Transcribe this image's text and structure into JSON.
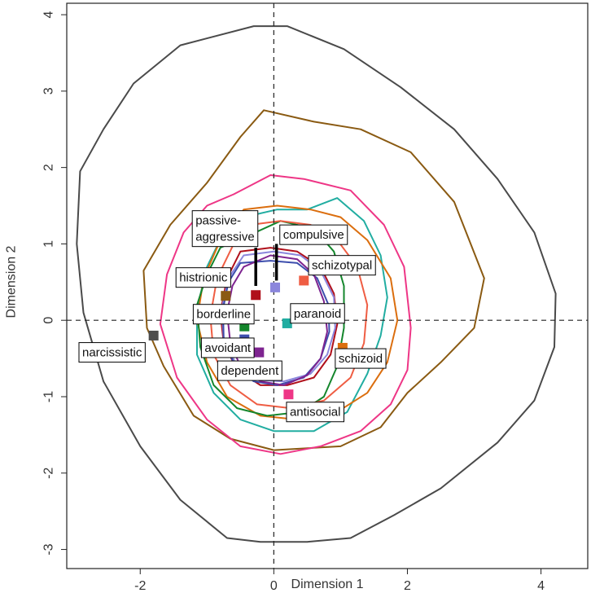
{
  "chart_data": {
    "type": "scatter",
    "xlabel": "Dimension 1",
    "ylabel": "Dimension 2",
    "xlim": [
      -3.1,
      4.7
    ],
    "ylim": [
      -3.25,
      4.15
    ],
    "x_ticks": [
      -2,
      0,
      2,
      4
    ],
    "y_ticks": [
      -3,
      -2,
      -1,
      0,
      1,
      2,
      3,
      4
    ],
    "reference_lines": {
      "x": 0,
      "y": 0,
      "style": "dashed"
    },
    "grid": false,
    "legend": "none",
    "points": [
      {
        "label": "narcissistic",
        "x": -1.8,
        "y": -0.2,
        "color": "#4d4d4d"
      },
      {
        "label": "histrionic",
        "x": -0.72,
        "y": 0.32,
        "color": "#8a5a12"
      },
      {
        "label": "passive-aggressive",
        "x": -0.27,
        "y": 0.33,
        "color": "#b0101b"
      },
      {
        "label": "compulsive",
        "x": 0.02,
        "y": 0.43,
        "color": "#8b86dc"
      },
      {
        "label": "schizotypal",
        "x": 0.45,
        "y": 0.52,
        "color": "#ef5d43"
      },
      {
        "label": "borderline",
        "x": -0.44,
        "y": -0.08,
        "color": "#14862c"
      },
      {
        "label": "avoidant",
        "x": -0.44,
        "y": -0.25,
        "color": "#3d4ead"
      },
      {
        "label": "paranoid",
        "x": 0.2,
        "y": -0.04,
        "color": "#21ada1"
      },
      {
        "label": "dependent",
        "x": -0.22,
        "y": -0.42,
        "color": "#7e2490"
      },
      {
        "label": "schizoid",
        "x": 1.03,
        "y": -0.36,
        "color": "#db6e0e"
      },
      {
        "label": "antisocial",
        "x": 0.22,
        "y": -0.97,
        "color": "#ee3686"
      }
    ],
    "contours": [
      {
        "color": "#4a4a4a",
        "points": [
          [
            -0.3,
            3.85
          ],
          [
            0.2,
            3.85
          ],
          [
            1.05,
            3.55
          ],
          [
            1.9,
            3.05
          ],
          [
            2.7,
            2.5
          ],
          [
            3.35,
            1.85
          ],
          [
            3.9,
            1.15
          ],
          [
            4.22,
            0.35
          ],
          [
            4.2,
            -0.35
          ],
          [
            3.9,
            -1.05
          ],
          [
            3.35,
            -1.6
          ],
          [
            2.5,
            -2.2
          ],
          [
            1.8,
            -2.55
          ],
          [
            1.15,
            -2.85
          ],
          [
            0.5,
            -2.9
          ],
          [
            -0.2,
            -2.9
          ],
          [
            -0.7,
            -2.85
          ],
          [
            -1.4,
            -2.35
          ],
          [
            -2.0,
            -1.65
          ],
          [
            -2.55,
            -0.8
          ],
          [
            -2.85,
            0.1
          ],
          [
            -2.95,
            1.0
          ],
          [
            -2.9,
            1.95
          ],
          [
            -2.55,
            2.5
          ],
          [
            -2.1,
            3.1
          ],
          [
            -1.4,
            3.6
          ]
        ]
      },
      {
        "color": "#8a5a12",
        "points": [
          [
            -1.0,
            1.8
          ],
          [
            -0.5,
            2.4
          ],
          [
            -0.15,
            2.75
          ],
          [
            0.6,
            2.6
          ],
          [
            1.3,
            2.5
          ],
          [
            2.05,
            2.2
          ],
          [
            2.7,
            1.55
          ],
          [
            3.15,
            0.55
          ],
          [
            3.0,
            -0.1
          ],
          [
            2.5,
            -0.55
          ],
          [
            2.0,
            -0.95
          ],
          [
            1.6,
            -1.4
          ],
          [
            1.0,
            -1.65
          ],
          [
            0.0,
            -1.7
          ],
          [
            -0.65,
            -1.55
          ],
          [
            -1.2,
            -1.25
          ],
          [
            -1.65,
            -0.6
          ],
          [
            -1.9,
            -0.1
          ],
          [
            -1.95,
            0.65
          ],
          [
            -1.55,
            1.25
          ]
        ]
      },
      {
        "color": "#ee3686",
        "points": [
          [
            -0.6,
            1.65
          ],
          [
            -0.05,
            1.9
          ],
          [
            0.45,
            1.85
          ],
          [
            1.15,
            1.7
          ],
          [
            1.65,
            1.25
          ],
          [
            1.95,
            0.7
          ],
          [
            2.05,
            -0.1
          ],
          [
            2.0,
            -0.65
          ],
          [
            1.75,
            -1.1
          ],
          [
            1.3,
            -1.45
          ],
          [
            0.7,
            -1.65
          ],
          [
            0.1,
            -1.75
          ],
          [
            -0.5,
            -1.65
          ],
          [
            -1.0,
            -1.3
          ],
          [
            -1.45,
            -0.75
          ],
          [
            -1.7,
            -0.05
          ],
          [
            -1.6,
            0.6
          ],
          [
            -1.35,
            1.15
          ],
          [
            -1.0,
            1.5
          ]
        ]
      },
      {
        "color": "#21ada1",
        "points": [
          [
            -0.45,
            1.35
          ],
          [
            0.05,
            1.45
          ],
          [
            0.5,
            1.45
          ],
          [
            0.95,
            1.6
          ],
          [
            1.35,
            1.3
          ],
          [
            1.6,
            0.85
          ],
          [
            1.7,
            0.3
          ],
          [
            1.6,
            -0.2
          ],
          [
            1.4,
            -0.7
          ],
          [
            1.1,
            -1.2
          ],
          [
            0.6,
            -1.45
          ],
          [
            0.0,
            -1.45
          ],
          [
            -0.5,
            -1.3
          ],
          [
            -0.9,
            -0.95
          ],
          [
            -1.15,
            -0.45
          ],
          [
            -1.15,
            0.15
          ],
          [
            -1.0,
            0.7
          ],
          [
            -0.75,
            1.15
          ]
        ]
      },
      {
        "color": "#db6e0e",
        "points": [
          [
            -0.45,
            1.45
          ],
          [
            0.05,
            1.5
          ],
          [
            0.55,
            1.45
          ],
          [
            1.0,
            1.35
          ],
          [
            1.4,
            1.05
          ],
          [
            1.75,
            0.55
          ],
          [
            1.85,
            0.0
          ],
          [
            1.7,
            -0.55
          ],
          [
            1.4,
            -0.95
          ],
          [
            0.95,
            -1.2
          ],
          [
            0.35,
            -1.3
          ],
          [
            -0.2,
            -1.25
          ],
          [
            -0.7,
            -1.0
          ],
          [
            -1.0,
            -0.55
          ],
          [
            -1.15,
            0.0
          ],
          [
            -1.05,
            0.55
          ],
          [
            -0.8,
            1.05
          ]
        ]
      },
      {
        "color": "#14862c",
        "points": [
          [
            -0.4,
            1.1
          ],
          [
            0.1,
            1.3
          ],
          [
            0.6,
            1.2
          ],
          [
            0.9,
            0.9
          ],
          [
            1.05,
            0.45
          ],
          [
            1.05,
            -0.1
          ],
          [
            0.95,
            -0.6
          ],
          [
            0.75,
            -1.0
          ],
          [
            0.4,
            -1.2
          ],
          [
            -0.1,
            -1.25
          ],
          [
            -0.55,
            -1.15
          ],
          [
            -0.9,
            -0.85
          ],
          [
            -1.1,
            -0.35
          ],
          [
            -1.15,
            0.2
          ],
          [
            -1.0,
            0.6
          ],
          [
            -0.8,
            0.95
          ]
        ]
      },
      {
        "color": "#ef5d43",
        "points": [
          [
            -0.35,
            1.25
          ],
          [
            0.1,
            1.3
          ],
          [
            0.55,
            1.25
          ],
          [
            0.95,
            1.05
          ],
          [
            1.25,
            0.7
          ],
          [
            1.4,
            0.2
          ],
          [
            1.35,
            -0.3
          ],
          [
            1.15,
            -0.75
          ],
          [
            0.75,
            -1.05
          ],
          [
            0.25,
            -1.15
          ],
          [
            -0.25,
            -1.1
          ],
          [
            -0.65,
            -0.85
          ],
          [
            -0.9,
            -0.45
          ],
          [
            -0.95,
            0.05
          ],
          [
            -0.85,
            0.55
          ],
          [
            -0.6,
            1.0
          ]
        ]
      },
      {
        "color": "#b0101b",
        "points": [
          [
            -0.5,
            0.9
          ],
          [
            -0.05,
            0.95
          ],
          [
            0.35,
            0.9
          ],
          [
            0.7,
            0.7
          ],
          [
            0.9,
            0.35
          ],
          [
            0.95,
            -0.05
          ],
          [
            0.85,
            -0.45
          ],
          [
            0.6,
            -0.75
          ],
          [
            0.2,
            -0.85
          ],
          [
            -0.2,
            -0.85
          ],
          [
            -0.55,
            -0.65
          ],
          [
            -0.75,
            -0.3
          ],
          [
            -0.8,
            0.1
          ],
          [
            -0.7,
            0.55
          ]
        ]
      },
      {
        "color": "#8b86dc",
        "points": [
          [
            -0.45,
            0.85
          ],
          [
            0.0,
            0.9
          ],
          [
            0.4,
            0.85
          ],
          [
            0.7,
            0.65
          ],
          [
            0.9,
            0.3
          ],
          [
            0.92,
            -0.1
          ],
          [
            0.8,
            -0.45
          ],
          [
            0.55,
            -0.7
          ],
          [
            0.15,
            -0.8
          ],
          [
            -0.25,
            -0.78
          ],
          [
            -0.55,
            -0.6
          ],
          [
            -0.75,
            -0.25
          ],
          [
            -0.78,
            0.15
          ],
          [
            -0.68,
            0.55
          ]
        ]
      },
      {
        "color": "#3d4ead",
        "points": [
          [
            -0.5,
            0.75
          ],
          [
            -0.05,
            0.78
          ],
          [
            0.35,
            0.75
          ],
          [
            0.65,
            0.55
          ],
          [
            0.82,
            0.2
          ],
          [
            0.83,
            -0.15
          ],
          [
            0.7,
            -0.5
          ],
          [
            0.45,
            -0.75
          ],
          [
            0.05,
            -0.85
          ],
          [
            -0.3,
            -0.8
          ],
          [
            -0.58,
            -0.6
          ],
          [
            -0.75,
            -0.25
          ],
          [
            -0.76,
            0.15
          ],
          [
            -0.68,
            0.5
          ]
        ]
      },
      {
        "color": "#7e2490",
        "points": [
          [
            -0.45,
            0.7
          ],
          [
            -0.05,
            0.85
          ],
          [
            0.35,
            0.8
          ],
          [
            0.6,
            0.6
          ],
          [
            0.75,
            0.25
          ],
          [
            0.8,
            -0.15
          ],
          [
            0.7,
            -0.5
          ],
          [
            0.5,
            -0.72
          ],
          [
            0.15,
            -0.85
          ],
          [
            -0.2,
            -0.8
          ],
          [
            -0.5,
            -0.6
          ],
          [
            -0.65,
            -0.3
          ],
          [
            -0.7,
            0.1
          ],
          [
            -0.62,
            0.45
          ]
        ]
      }
    ],
    "label_positions": {
      "narcissistic": [
        -1.95,
        -0.42,
        "right"
      ],
      "histrionic": [
        -0.67,
        0.56,
        "right"
      ],
      "passive-aggressive": [
        -0.73,
        1.2,
        "center"
      ],
      "compulsive": [
        0.09,
        1.12,
        "left"
      ],
      "schizotypal": [
        0.52,
        0.72,
        "left"
      ],
      "borderline": [
        -0.32,
        0.08,
        "right"
      ],
      "avoidant": [
        -0.32,
        -0.36,
        "right"
      ],
      "paranoid": [
        0.25,
        0.09,
        "left"
      ],
      "dependent": [
        -0.36,
        -0.66,
        "center"
      ],
      "schizoid": [
        0.92,
        -0.5,
        "left"
      ],
      "antisocial": [
        0.19,
        -1.2,
        "left"
      ]
    }
  }
}
